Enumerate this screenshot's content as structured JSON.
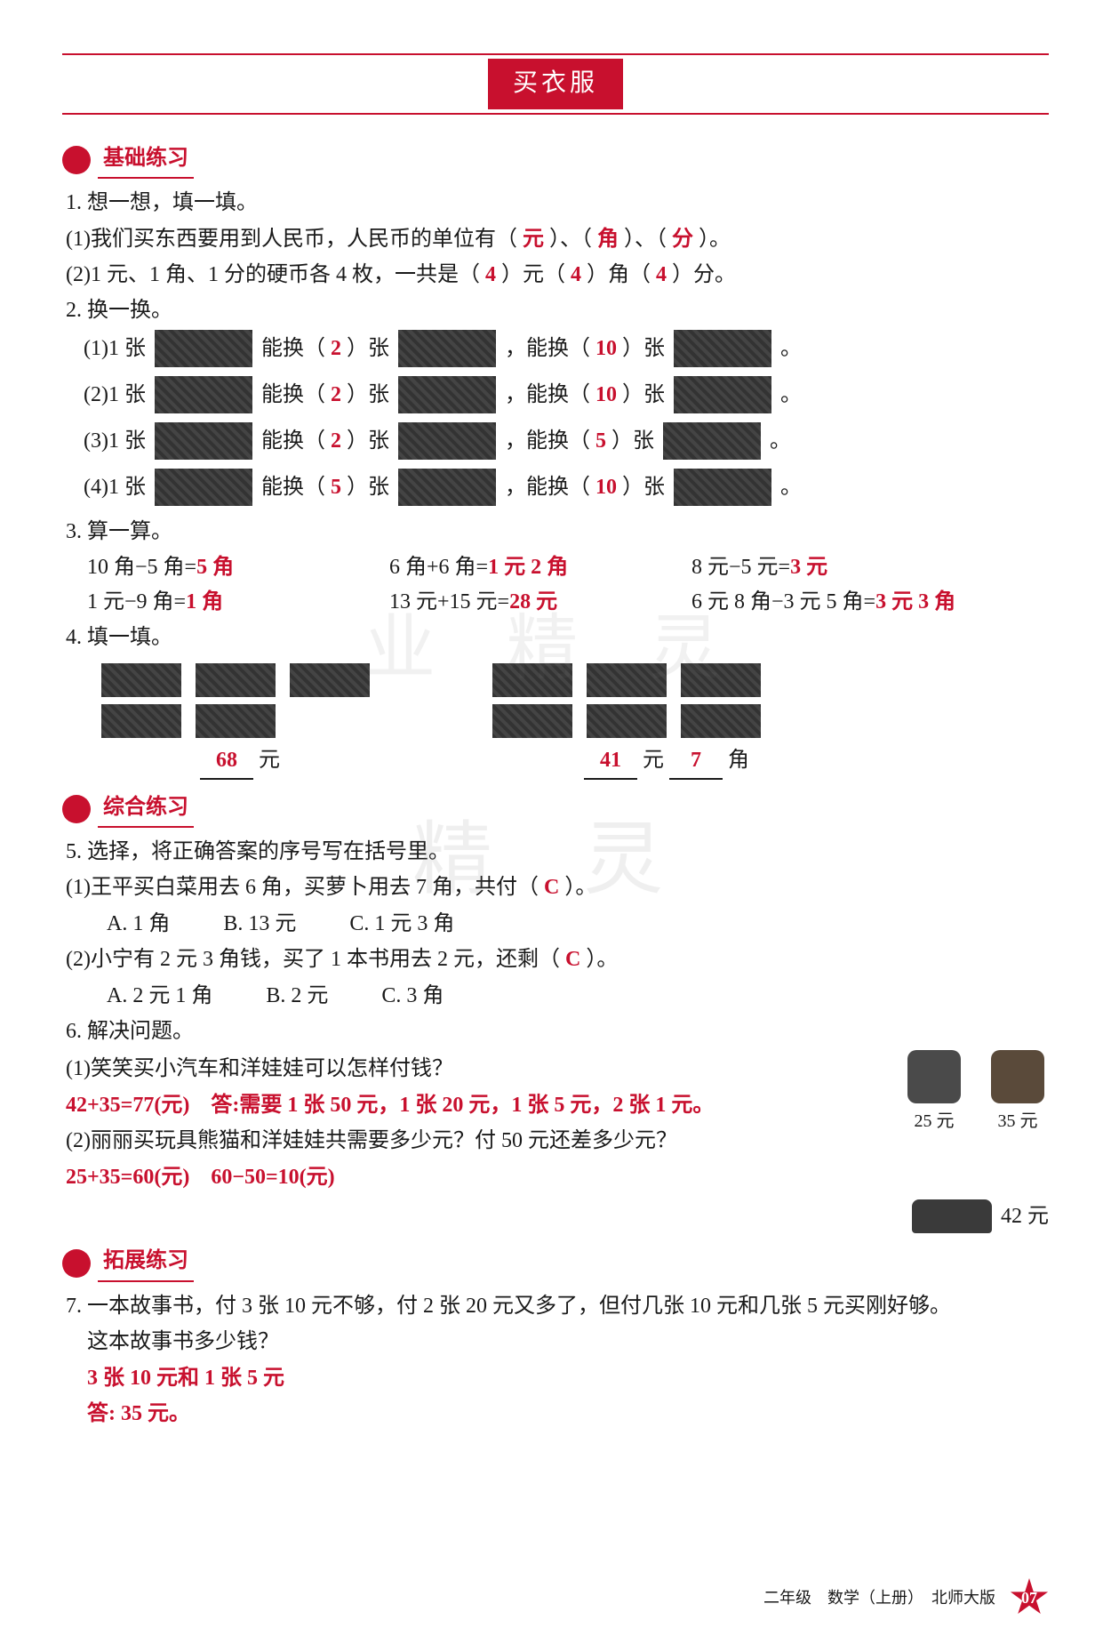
{
  "colors": {
    "accent": "#c8102e",
    "text": "#1a1a1a",
    "bg": "#ffffff",
    "imgfill": "#2b2b2b"
  },
  "title": "买衣服",
  "sections": {
    "basic": "基础练习",
    "comp": "综合练习",
    "ext": "拓展练习"
  },
  "q1": {
    "head": "1. 想一想，填一填。",
    "l1a": "(1)我们买东西要用到人民币，人民币的单位有（",
    "l1ans": [
      "元",
      "角",
      "分"
    ],
    "l1mid1": "）、（",
    "l1mid2": "）、（",
    "l1end": "）。",
    "l2a": "(2)1 元、1 角、1 分的硬币各 4 枚，一共是（",
    "l2ans": [
      "4",
      "4",
      "4"
    ],
    "l2mid1": "）元（",
    "l2mid2": "）角（",
    "l2end": "）分。"
  },
  "q2": {
    "head": "2. 换一换。",
    "rows": [
      {
        "pre": "(1)1 张",
        "a1": "2",
        "a2": "10"
      },
      {
        "pre": "(2)1 张",
        "a1": "2",
        "a2": "10"
      },
      {
        "pre": "(3)1 张",
        "a1": "2",
        "a2": "5"
      },
      {
        "pre": "(4)1 张",
        "a1": "5",
        "a2": "10"
      }
    ],
    "t_can": "能换（",
    "t_zhang": "）张",
    "t_comma": "，能换（",
    "t_end": "。"
  },
  "q3": {
    "head": "3. 算一算。",
    "items": [
      {
        "q": "10 角−5 角=",
        "a": "5 角"
      },
      {
        "q": "6 角+6 角=",
        "a": "1 元 2 角"
      },
      {
        "q": "8 元−5 元=",
        "a": "3 元"
      },
      {
        "q": "1 元−9 角=",
        "a": "1 角"
      },
      {
        "q": "13 元+15 元=",
        "a": "28 元"
      },
      {
        "q": "6 元 8 角−3 元 5 角=",
        "a": "3 元 3 角"
      }
    ]
  },
  "q4": {
    "head": "4. 填一填。",
    "left_ans": "68",
    "left_unit": "元",
    "right_ans1": "41",
    "right_unit1": "元",
    "right_ans2": "7",
    "right_unit2": "角"
  },
  "q5": {
    "head": "5. 选择，将正确答案的序号写在括号里。",
    "s1": {
      "q": "(1)王平买白菜用去 6 角，买萝卜用去 7 角，共付（",
      "ans": "C",
      "tail": "）。",
      "opts": [
        "A. 1 角",
        "B. 13 元",
        "C. 1 元 3 角"
      ]
    },
    "s2": {
      "q": "(2)小宁有 2 元 3 角钱，买了 1 本书用去 2 元，还剩（",
      "ans": "C",
      "tail": "）。",
      "opts": [
        "A. 2 元 1 角",
        "B. 2 元",
        "C. 3 角"
      ]
    }
  },
  "q6": {
    "head": "6. 解决问题。",
    "p1q": "(1)笑笑买小汽车和洋娃娃可以怎样付钱？",
    "p1a": "42+35=77(元)　答:需要 1 张 50 元，1 张 20 元，1 张 5 元，2 张 1 元。",
    "p2q": "(2)丽丽买玩具熊猫和洋娃娃共需要多少元？付 50 元还差多少元？",
    "p2a": "25+35=60(元)　60−50=10(元)",
    "toys": {
      "panda": "25 元",
      "doll": "35 元",
      "car": "42 元"
    }
  },
  "q7": {
    "head": "7. 一本故事书，付 3 张 10 元不够，付 2 张 20 元又多了，但付几张 10 元和几张 5 元买刚好够。",
    "sub": "这本故事书多少钱？",
    "a1": "3 张 10 元和 1 张 5 元",
    "a2": "答: 35 元。"
  },
  "footer": {
    "text": "二年级　数学（上册）　北师大版",
    "page": "07"
  },
  "watermark": "精 灵"
}
